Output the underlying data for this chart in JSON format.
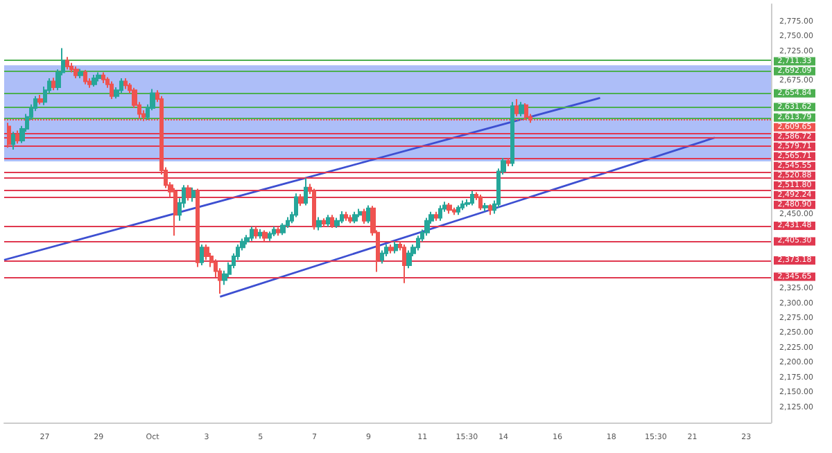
{
  "chart_data": {
    "type": "candlestick",
    "x": [
      "--09-25T16:00",
      "--09-25T20:00",
      "--09-26T00:00",
      "--09-26T04:00",
      "--09-26T08:00",
      "--09-26T12:00",
      "--09-26T16:00",
      "--09-26T20:00",
      "--09-27T00:00",
      "--09-27T04:00",
      "--09-27T08:00",
      "--09-27T12:00",
      "--09-27T16:00",
      "--09-27T20:00",
      "--09-28T00:00",
      "--09-28T04:00",
      "--09-28T08:00",
      "--09-28T12:00",
      "--09-28T16:00",
      "--09-28T20:00",
      "--09-29T00:00",
      "--09-29T04:00",
      "--09-29T08:00",
      "--09-29T12:00",
      "--09-29T16:00",
      "--09-29T20:00",
      "--09-30T00:00",
      "--09-30T04:00",
      "--09-30T08:00",
      "--09-30T12:00",
      "--09-30T16:00",
      "--09-30T20:00",
      "--10-01T00:00",
      "--10-01T04:00",
      "--10-01T08:00",
      "--10-01T12:00",
      "--10-01T16:00",
      "--10-01T20:00",
      "--10-02T00:00",
      "--10-02T04:00",
      "--10-02T08:00",
      "--10-02T12:00",
      "--10-02T16:00",
      "--10-02T20:00",
      "--10-03T00:00",
      "--10-03T04:00",
      "--10-03T08:00",
      "--10-03T12:00",
      "--10-03T16:00",
      "--10-03T20:00",
      "--10-04T00:00",
      "--10-04T04:00",
      "--10-04T08:00",
      "--10-04T12:00",
      "--10-04T16:00",
      "--10-04T20:00",
      "--10-05T00:00",
      "--10-05T04:00",
      "--10-05T08:00",
      "--10-05T12:00",
      "--10-05T16:00",
      "--10-05T20:00",
      "--10-06T00:00",
      "--10-06T04:00",
      "--10-06T08:00",
      "--10-06T12:00",
      "--10-06T16:00",
      "--10-06T20:00",
      "--10-07T00:00",
      "--10-07T04:00",
      "--10-07T08:00",
      "--10-07T12:00",
      "--10-07T16:00",
      "--10-07T20:00",
      "--10-08T00:00",
      "--10-08T04:00",
      "--10-08T08:00",
      "--10-08T12:00",
      "--10-08T16:00",
      "--10-08T20:00",
      "--10-09T00:00",
      "--10-09T04:00",
      "--10-09T08:00",
      "--10-09T12:00",
      "--10-09T16:00",
      "--10-09T20:00",
      "--10-10T00:00",
      "--10-10T04:00",
      "--10-10T08:00",
      "--10-10T12:00",
      "--10-10T16:00",
      "--10-10T20:00",
      "--10-11T00:00",
      "--10-11T04:00",
      "--10-11T08:00",
      "--10-11T12:00",
      "--10-11T16:00",
      "--10-11T20:00",
      "--10-12T00:00",
      "--10-12T04:00",
      "--10-12T08:00",
      "--10-12T12:00",
      "--10-12T16:00",
      "--10-12T20:00",
      "--10-13T00:00",
      "--10-13T04:00",
      "--10-13T08:00",
      "--10-13T12:00",
      "--10-13T16:00",
      "--10-13T20:00",
      "--10-14T00:00",
      "--10-14T04:00",
      "--10-14T08:00",
      "--10-14T12:00",
      "--10-14T16:00",
      "--10-14T20:00",
      "--10-15T00:00"
    ],
    "ohlc": [
      [
        2599,
        2605,
        2563,
        2569
      ],
      [
        2569,
        2590,
        2560,
        2585
      ],
      [
        2585,
        2592,
        2570,
        2575
      ],
      [
        2575,
        2600,
        2571,
        2595
      ],
      [
        2595,
        2620,
        2590,
        2615
      ],
      [
        2615,
        2636,
        2610,
        2630
      ],
      [
        2630,
        2650,
        2625,
        2645
      ],
      [
        2645,
        2652,
        2636,
        2640
      ],
      [
        2640,
        2666,
        2635,
        2660
      ],
      [
        2660,
        2680,
        2655,
        2675
      ],
      [
        2675,
        2681,
        2660,
        2665
      ],
      [
        2665,
        2695,
        2660,
        2690
      ],
      [
        2690,
        2731,
        2685,
        2710
      ],
      [
        2710,
        2716,
        2695,
        2700
      ],
      [
        2700,
        2706,
        2690,
        2695
      ],
      [
        2695,
        2700,
        2680,
        2685
      ],
      [
        2685,
        2696,
        2680,
        2690
      ],
      [
        2690,
        2694,
        2670,
        2675
      ],
      [
        2675,
        2680,
        2664,
        2670
      ],
      [
        2670,
        2686,
        2666,
        2680
      ],
      [
        2680,
        2690,
        2675,
        2685
      ],
      [
        2685,
        2690,
        2672,
        2678
      ],
      [
        2678,
        2682,
        2664,
        2670
      ],
      [
        2670,
        2675,
        2645,
        2650
      ],
      [
        2650,
        2665,
        2646,
        2660
      ],
      [
        2660,
        2680,
        2655,
        2675
      ],
      [
        2675,
        2680,
        2662,
        2668
      ],
      [
        2668,
        2672,
        2655,
        2660
      ],
      [
        2660,
        2664,
        2630,
        2635
      ],
      [
        2635,
        2640,
        2612,
        2620
      ],
      [
        2620,
        2626,
        2608,
        2615
      ],
      [
        2615,
        2636,
        2610,
        2630
      ],
      [
        2630,
        2662,
        2626,
        2655
      ],
      [
        2655,
        2660,
        2640,
        2645
      ],
      [
        2645,
        2650,
        2518,
        2525
      ],
      [
        2525,
        2530,
        2495,
        2500
      ],
      [
        2500,
        2505,
        2480,
        2489
      ],
      [
        2489,
        2495,
        2415,
        2450
      ],
      [
        2450,
        2478,
        2440,
        2470
      ],
      [
        2470,
        2500,
        2462,
        2495
      ],
      [
        2495,
        2500,
        2474,
        2480
      ],
      [
        2480,
        2496,
        2472,
        2490
      ],
      [
        2490,
        2494,
        2362,
        2370
      ],
      [
        2370,
        2400,
        2365,
        2395
      ],
      [
        2395,
        2400,
        2374,
        2380
      ],
      [
        2380,
        2386,
        2362,
        2370
      ],
      [
        2370,
        2375,
        2345,
        2355
      ],
      [
        2355,
        2360,
        2317,
        2340
      ],
      [
        2340,
        2356,
        2332,
        2350
      ],
      [
        2350,
        2370,
        2345,
        2365
      ],
      [
        2365,
        2385,
        2360,
        2380
      ],
      [
        2380,
        2400,
        2374,
        2395
      ],
      [
        2395,
        2410,
        2390,
        2405
      ],
      [
        2405,
        2416,
        2400,
        2411
      ],
      [
        2411,
        2430,
        2406,
        2425
      ],
      [
        2425,
        2430,
        2410,
        2415
      ],
      [
        2415,
        2426,
        2410,
        2420
      ],
      [
        2420,
        2424,
        2405,
        2411
      ],
      [
        2411,
        2422,
        2406,
        2418
      ],
      [
        2418,
        2430,
        2414,
        2425
      ],
      [
        2425,
        2429,
        2415,
        2420
      ],
      [
        2420,
        2436,
        2416,
        2432
      ],
      [
        2432,
        2446,
        2428,
        2440
      ],
      [
        2440,
        2455,
        2436,
        2450
      ],
      [
        2450,
        2486,
        2446,
        2480
      ],
      [
        2480,
        2485,
        2465,
        2470
      ],
      [
        2470,
        2512,
        2466,
        2496
      ],
      [
        2496,
        2502,
        2485,
        2490
      ],
      [
        2490,
        2494,
        2425,
        2430
      ],
      [
        2430,
        2446,
        2424,
        2440
      ],
      [
        2440,
        2444,
        2430,
        2435
      ],
      [
        2435,
        2450,
        2430,
        2445
      ],
      [
        2445,
        2450,
        2428,
        2432
      ],
      [
        2432,
        2445,
        2428,
        2440
      ],
      [
        2440,
        2456,
        2436,
        2450
      ],
      [
        2450,
        2455,
        2440,
        2445
      ],
      [
        2445,
        2450,
        2436,
        2440
      ],
      [
        2440,
        2455,
        2436,
        2450
      ],
      [
        2450,
        2460,
        2446,
        2455
      ],
      [
        2455,
        2460,
        2435,
        2440
      ],
      [
        2440,
        2466,
        2436,
        2461
      ],
      [
        2461,
        2465,
        2415,
        2420
      ],
      [
        2420,
        2424,
        2354,
        2374
      ],
      [
        2374,
        2390,
        2368,
        2385
      ],
      [
        2385,
        2400,
        2380,
        2395
      ],
      [
        2395,
        2400,
        2385,
        2390
      ],
      [
        2390,
        2405,
        2385,
        2400
      ],
      [
        2400,
        2404,
        2390,
        2395
      ],
      [
        2395,
        2400,
        2335,
        2365
      ],
      [
        2365,
        2390,
        2360,
        2385
      ],
      [
        2385,
        2400,
        2380,
        2395
      ],
      [
        2395,
        2415,
        2390,
        2410
      ],
      [
        2410,
        2425,
        2405,
        2420
      ],
      [
        2420,
        2445,
        2415,
        2440
      ],
      [
        2440,
        2455,
        2435,
        2450
      ],
      [
        2450,
        2455,
        2440,
        2445
      ],
      [
        2445,
        2466,
        2440,
        2460
      ],
      [
        2460,
        2472,
        2455,
        2466
      ],
      [
        2466,
        2470,
        2452,
        2458
      ],
      [
        2458,
        2462,
        2450,
        2455
      ],
      [
        2455,
        2466,
        2450,
        2462
      ],
      [
        2462,
        2474,
        2458,
        2468
      ],
      [
        2468,
        2476,
        2464,
        2470
      ],
      [
        2470,
        2490,
        2466,
        2484
      ],
      [
        2484,
        2488,
        2475,
        2480
      ],
      [
        2480,
        2484,
        2458,
        2462
      ],
      [
        2462,
        2470,
        2456,
        2465
      ],
      [
        2465,
        2468,
        2450,
        2458
      ],
      [
        2458,
        2474,
        2452,
        2468
      ],
      [
        2468,
        2528,
        2462,
        2523
      ],
      [
        2523,
        2546,
        2518,
        2541
      ],
      [
        2541,
        2545,
        2532,
        2537
      ],
      [
        2537,
        2640,
        2532,
        2633
      ],
      [
        2633,
        2645,
        2616,
        2621
      ],
      [
        2621,
        2640,
        2616,
        2635
      ],
      [
        2635,
        2638,
        2610,
        2615
      ],
      [
        2615,
        2620,
        2605,
        2610
      ]
    ],
    "colors": [
      "#ef5350",
      "#26a69a",
      "#ef5350",
      "#26a69a",
      "#26a69a",
      "#26a69a",
      "#26a69a",
      "#ef5350",
      "#26a69a",
      "#26a69a",
      "#ef5350",
      "#26a69a",
      "#26a69a",
      "#ef5350",
      "#ef5350",
      "#ef5350",
      "#26a69a",
      "#ef5350",
      "#ef5350",
      "#26a69a",
      "#26a69a",
      "#ef5350",
      "#ef5350",
      "#ef5350",
      "#26a69a",
      "#26a69a",
      "#ef5350",
      "#ef5350",
      "#ef5350",
      "#ef5350",
      "#ef5350",
      "#26a69a",
      "#26a69a",
      "#ef5350",
      "#ef5350",
      "#ef5350",
      "#ef5350",
      "#ef5350",
      "#26a69a",
      "#26a69a",
      "#ef5350",
      "#26a69a",
      "#ef5350",
      "#26a69a",
      "#ef5350",
      "#ef5350",
      "#ef5350",
      "#ef5350",
      "#26a69a",
      "#26a69a",
      "#26a69a",
      "#26a69a",
      "#26a69a",
      "#26a69a",
      "#26a69a",
      "#ef5350",
      "#26a69a",
      "#ef5350",
      "#26a69a",
      "#26a69a",
      "#ef5350",
      "#26a69a",
      "#26a69a",
      "#26a69a",
      "#26a69a",
      "#ef5350",
      "#26a69a",
      "#ef5350",
      "#ef5350",
      "#26a69a",
      "#ef5350",
      "#26a69a",
      "#ef5350",
      "#26a69a",
      "#26a69a",
      "#ef5350",
      "#ef5350",
      "#26a69a",
      "#26a69a",
      "#ef5350",
      "#26a69a",
      "#ef5350",
      "#ef5350",
      "#26a69a",
      "#26a69a",
      "#ef5350",
      "#26a69a",
      "#ef5350",
      "#ef5350",
      "#26a69a",
      "#26a69a",
      "#26a69a",
      "#26a69a",
      "#26a69a",
      "#26a69a",
      "#ef5350",
      "#26a69a",
      "#26a69a",
      "#ef5350",
      "#ef5350",
      "#26a69a",
      "#26a69a",
      "#26a69a",
      "#26a69a",
      "#ef5350",
      "#ef5350",
      "#26a69a",
      "#ef5350",
      "#26a69a",
      "#26a69a",
      "#26a69a",
      "#ef5350",
      "#26a69a",
      "#ef5350",
      "#26a69a",
      "#ef5350",
      "#ef5350"
    ],
    "series": [
      {
        "type": "line",
        "color": "#3d4fd1",
        "x": [
          "--09-25T12:00",
          "--10-17T14:00"
        ],
        "values": [
          2374,
          2647
        ]
      },
      {
        "type": "line",
        "color": "#3d4fd1",
        "x": [
          "--10-03T12:00",
          "--10-21T20:00"
        ],
        "values": [
          2312,
          2580
        ]
      }
    ],
    "xlim": [
      "--09-25T12:00",
      "--10-23T22:00"
    ],
    "xticks": [
      {
        "value": "--09-27",
        "label": "27"
      },
      {
        "value": "--09-29",
        "label": "29"
      },
      {
        "value": "--10-01",
        "label": "Oct"
      },
      {
        "value": "--10-03",
        "label": "3"
      },
      {
        "value": "--10-05",
        "label": "5"
      },
      {
        "value": "--10-07",
        "label": "7"
      },
      {
        "value": "--10-09",
        "label": "9"
      },
      {
        "value": "--10-11",
        "label": "11"
      },
      {
        "value": "--10-12T15:30",
        "label": "15:30"
      },
      {
        "value": "--10-14",
        "label": "14"
      },
      {
        "value": "--10-16",
        "label": "16"
      },
      {
        "value": "--10-18",
        "label": "18"
      },
      {
        "value": "--10-19T15:30",
        "label": "15:30"
      },
      {
        "value": "--10-21",
        "label": "21"
      },
      {
        "value": "--10-23",
        "label": "23"
      }
    ],
    "ylim": [
      2100,
      2805
    ],
    "yticks": [
      {
        "value": 2125,
        "label": "2,125.00"
      },
      {
        "value": 2150,
        "label": "2,150.00"
      },
      {
        "value": 2175,
        "label": "2,175.00"
      },
      {
        "value": 2200,
        "label": "2,200.00"
      },
      {
        "value": 2225,
        "label": "2,225.00"
      },
      {
        "value": 2250,
        "label": "2,250.00"
      },
      {
        "value": 2275,
        "label": "2,275.00"
      },
      {
        "value": 2300,
        "label": "2,300.00"
      },
      {
        "value": 2325,
        "label": "2,325.00"
      },
      {
        "value": 2450,
        "label": "2,450.00"
      },
      {
        "value": 2675,
        "label": "2,675.00"
      },
      {
        "value": 2725,
        "label": "2,725.00"
      },
      {
        "value": 2750,
        "label": "2,750.00"
      },
      {
        "value": 2775,
        "label": "2,775.00"
      }
    ],
    "bands": [
      {
        "axis": "y",
        "from": 2540,
        "to": 2702,
        "color": "#9fb3f7"
      }
    ],
    "ref_lines": [
      {
        "axis": "y",
        "value": 2711.33,
        "label": "2,711.33",
        "color": "#4caf50"
      },
      {
        "axis": "y",
        "value": 2692.09,
        "label": "2,692.09",
        "color": "#4caf50"
      },
      {
        "axis": "y",
        "value": 2654.84,
        "label": "2,654.84",
        "color": "#4caf50"
      },
      {
        "axis": "y",
        "value": 2631.62,
        "label": "2,631.62",
        "color": "#4caf50"
      },
      {
        "axis": "y",
        "value": 2613.79,
        "label": "2,613.79",
        "color": "#4caf50"
      },
      {
        "axis": "y",
        "value": 2609.65,
        "label": "2,609.65",
        "color": "#ef5350",
        "line_style": "dotted"
      },
      {
        "axis": "y",
        "value": 2586.72,
        "label": "2,586.72",
        "color": "#e0384f"
      },
      {
        "axis": "y",
        "value": 2579.71,
        "label": "2,579.71",
        "color": "#e0384f"
      },
      {
        "axis": "y",
        "value": 2565.71,
        "label": "2,565.71",
        "color": "#e0384f"
      },
      {
        "axis": "y",
        "value": 2545.55,
        "label": "2,545.55",
        "color": "#e0384f"
      },
      {
        "axis": "y",
        "value": 2520.88,
        "label": "2,520.88",
        "color": "#e0384f"
      },
      {
        "axis": "y",
        "value": 2511.8,
        "label": "2,511.80",
        "color": "#e0384f"
      },
      {
        "axis": "y",
        "value": 2492.24,
        "label": "2,492.24",
        "color": "#e0384f"
      },
      {
        "axis": "y",
        "value": 2480.9,
        "label": "2,480.90",
        "color": "#e0384f"
      },
      {
        "axis": "y",
        "value": 2431.48,
        "label": "2,431.48",
        "color": "#e0384f"
      },
      {
        "axis": "y",
        "value": 2405.3,
        "label": "2,405.30",
        "color": "#e0384f"
      },
      {
        "axis": "y",
        "value": 2373.18,
        "label": "2,373.18",
        "color": "#e0384f"
      },
      {
        "axis": "y",
        "value": 2345.65,
        "label": "2,345.65",
        "color": "#e0384f"
      }
    ]
  }
}
